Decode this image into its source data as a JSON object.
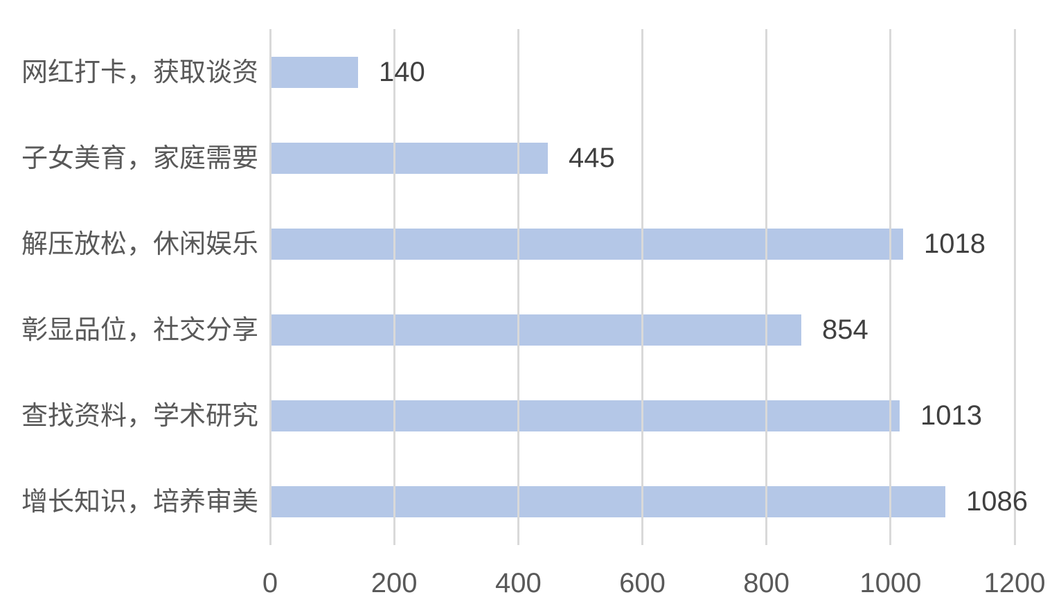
{
  "chart_data": {
    "type": "bar",
    "orientation": "horizontal",
    "title": "",
    "xlabel": "",
    "ylabel": "",
    "categories": [
      "网红打卡，获取谈资",
      "子女美育，家庭需要",
      "解压放松，休闲娱乐",
      "彰显品位，社交分享",
      "查找资料，学术研究",
      "增长知识，培养审美"
    ],
    "values": [
      140,
      445,
      1018,
      854,
      1013,
      1086
    ],
    "xlim": [
      0,
      1200
    ],
    "xticks": [
      "0",
      "200",
      "400",
      "600",
      "800",
      "1000",
      "1200"
    ],
    "grid": true,
    "legend": "none",
    "colors": {
      "bar": "#b4c7e7",
      "gridline": "#d9d9d9",
      "category_label": "#595959",
      "value_label": "#404040",
      "tick_label": "#595959",
      "background": "#ffffff"
    }
  }
}
